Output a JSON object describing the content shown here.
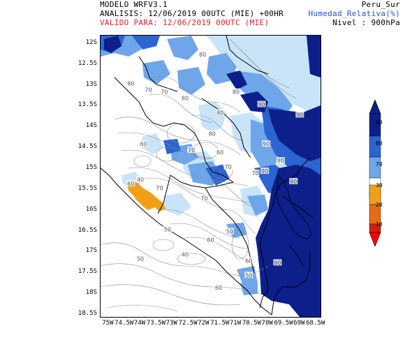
{
  "header": {
    "model": "MODELO WRFV3.1",
    "analysis": "ANALISIS: 12/06/2019 00UTC (MIE) +00HR",
    "valid": "VALIDO PARA: 12/06/2019 00UTC (MIE)",
    "region": "Peru_Sur",
    "variable": "Humedad_Relativa(%)",
    "level": "Nivel : 900hPa"
  },
  "colors": {
    "header_red": "#e8202a",
    "variable_blue": "#2850c8",
    "rh_70": "#c9e4f8",
    "rh_80": "#6fa6ea",
    "rh_90": "#2c64d0",
    "rh_100": "#0c1f8a",
    "rh_30": "#f0a018",
    "rh_20": "#e86a10",
    "rh_10": "#d02010",
    "rh_0": "#ff0000"
  },
  "map": {
    "lat_labels": [
      "12S",
      "12.5S",
      "13S",
      "13.5S",
      "14S",
      "14.5S",
      "15S",
      "15.5S",
      "16S",
      "16.5S",
      "17S",
      "17.5S",
      "18S",
      "18.5S"
    ],
    "lon_labels": [
      "75W",
      "74.5W",
      "74W",
      "73.5W",
      "73W",
      "72.5W",
      "72W",
      "71.5W",
      "71W",
      "70.5W",
      "70W",
      "69.5W",
      "69W",
      "68.5W"
    ],
    "contour_labels": [
      {
        "text": "80",
        "lon": -74.3,
        "lat": -12.95
      },
      {
        "text": "70",
        "lon": -73.75,
        "lat": -13.1
      },
      {
        "text": "70",
        "lon": -73.25,
        "lat": -13.15
      },
      {
        "text": "80",
        "lon": -72.6,
        "lat": -13.3
      },
      {
        "text": "80",
        "lon": -72.05,
        "lat": -12.25
      },
      {
        "text": "80",
        "lon": -71.0,
        "lat": -13.15
      },
      {
        "text": "80",
        "lon": -71.5,
        "lat": -13.65
      },
      {
        "text": "90",
        "lon": -70.2,
        "lat": -13.45
      },
      {
        "text": "90",
        "lon": -69.0,
        "lat": -13.7
      },
      {
        "text": "60",
        "lon": -73.9,
        "lat": -14.4
      },
      {
        "text": "70",
        "lon": -72.4,
        "lat": -14.55
      },
      {
        "text": "80",
        "lon": -71.75,
        "lat": -14.15
      },
      {
        "text": "60",
        "lon": -71.5,
        "lat": -14.6
      },
      {
        "text": "70",
        "lon": -71.25,
        "lat": -14.95
      },
      {
        "text": "90",
        "lon": -70.05,
        "lat": -14.4
      },
      {
        "text": "80",
        "lon": -69.6,
        "lat": -14.8
      },
      {
        "text": "70",
        "lon": -70.4,
        "lat": -15.1
      },
      {
        "text": "90",
        "lon": -70.1,
        "lat": -15.05
      },
      {
        "text": "80",
        "lon": -69.2,
        "lat": -15.3
      },
      {
        "text": "60",
        "lon": -74.3,
        "lat": -15.35
      },
      {
        "text": "40",
        "lon": -74.0,
        "lat": -15.25
      },
      {
        "text": "70",
        "lon": -73.4,
        "lat": -15.45
      },
      {
        "text": "70",
        "lon": -72.0,
        "lat": -15.7
      },
      {
        "text": "50",
        "lon": -73.15,
        "lat": -16.45
      },
      {
        "text": "60",
        "lon": -71.8,
        "lat": -16.7
      },
      {
        "text": "50",
        "lon": -71.2,
        "lat": -16.5
      },
      {
        "text": "50",
        "lon": -74.0,
        "lat": -17.15
      },
      {
        "text": "60",
        "lon": -70.6,
        "lat": -17.2
      },
      {
        "text": "90",
        "lon": -69.7,
        "lat": -17.25
      },
      {
        "text": "40",
        "lon": -72.6,
        "lat": -17.05
      },
      {
        "text": "50",
        "lon": -70.6,
        "lat": -17.55
      },
      {
        "text": "60",
        "lon": -71.55,
        "lat": -17.85
      }
    ]
  },
  "colorbar": {
    "labels": [
      "90",
      "80",
      "70",
      "30",
      "20",
      "10"
    ]
  }
}
